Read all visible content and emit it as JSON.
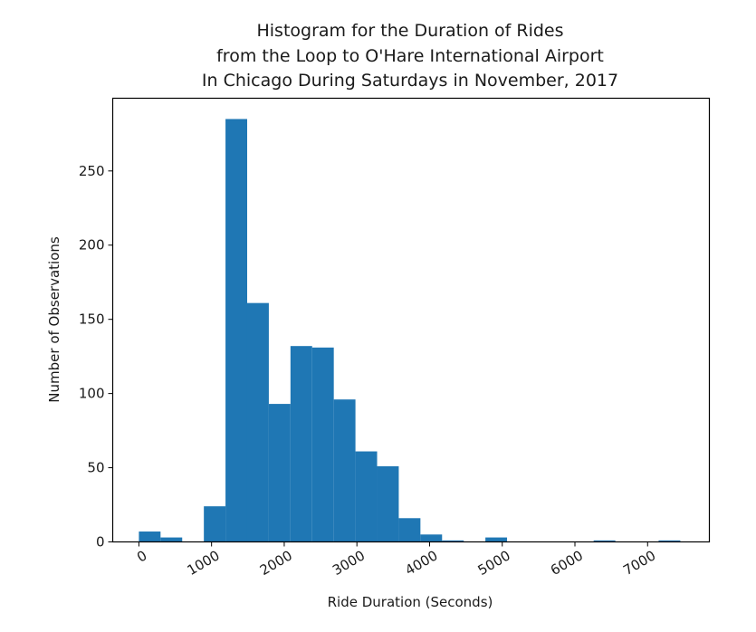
{
  "chart_data": {
    "type": "bar",
    "title_lines": [
      "Histogram for the Duration of Rides",
      "from the Loop to O'Hare International Airport",
      "In Chicago During Saturdays in November, 2017"
    ],
    "xlabel": "Ride Duration (Seconds)",
    "ylabel": "Number of Observations",
    "xlim": [
      -360,
      7850
    ],
    "ylim": [
      0,
      299
    ],
    "xticks": [
      0,
      1000,
      2000,
      3000,
      4000,
      5000,
      6000,
      7000
    ],
    "xtick_labels": [
      "0",
      "1000",
      "2000",
      "3000",
      "4000",
      "5000",
      "6000",
      "7000"
    ],
    "yticks": [
      0,
      50,
      100,
      150,
      200,
      250
    ],
    "ytick_labels": [
      "0",
      "50",
      "100",
      "150",
      "200",
      "250"
    ],
    "bin_start": 0,
    "bin_width": 298,
    "values": [
      7,
      3,
      0,
      24,
      285,
      161,
      93,
      132,
      131,
      96,
      61,
      51,
      16,
      5,
      1,
      0,
      3,
      0,
      0,
      0,
      0,
      1,
      0,
      0,
      1
    ],
    "bar_color": "#1f77b4",
    "grid": false
  }
}
